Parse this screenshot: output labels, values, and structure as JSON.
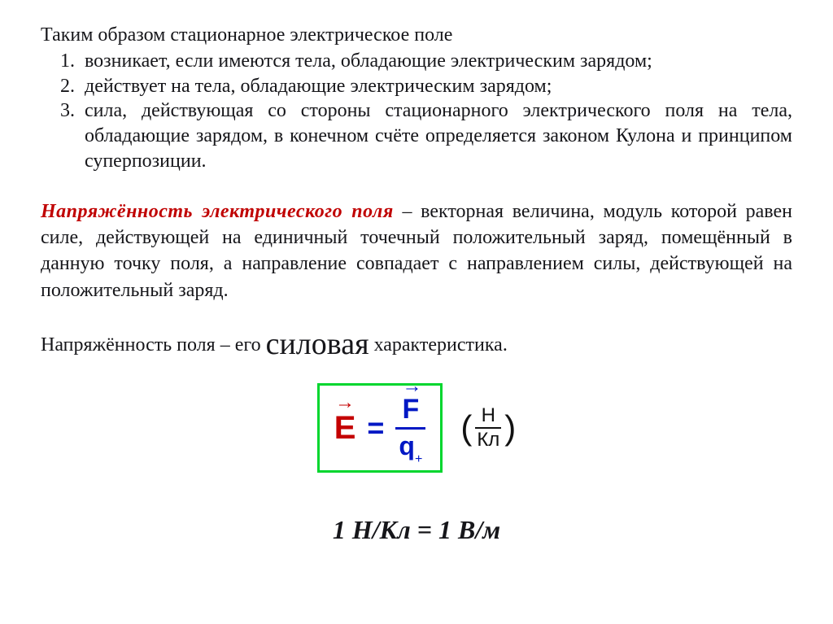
{
  "intro": "Таким образом стационарное электрическое поле",
  "list": {
    "item1": "возникает, если имеются тела, обладающие электрическим зарядом;",
    "item2": "действует на тела, обладающие электрическим зарядом;",
    "item3": " сила, действующая со стороны стационарного электрического поля на тела, обладающие зарядом, в конечном счёте определяется законом Кулона и принципом суперпозиции."
  },
  "definition": {
    "term": "Напряжённость электрического поля",
    "rest": " – векторная величина, модуль которой равен силе, действующей на единичный точечный положительный заряд, помещённый в данную точку поля, а направление совпадает с направлением силы, действующей на положительный заряд."
  },
  "characteristic": {
    "before": "Напряжённость поля – его ",
    "emph": "силовая",
    "after": " характеристика."
  },
  "formula": {
    "E": "E",
    "equals": "=",
    "F": "F",
    "q": "q",
    "q_sub": "+",
    "vec_arrow": "→",
    "unit_num": "Н",
    "unit_den": "Кл",
    "paren_left": "(",
    "paren_right": ")",
    "colors": {
      "box_border": "#00d62e",
      "E_color": "#c40000",
      "frac_color": "#0018c4",
      "text_color": "#111111"
    }
  },
  "equivalence": "1 Н/Кл = 1 В/м"
}
